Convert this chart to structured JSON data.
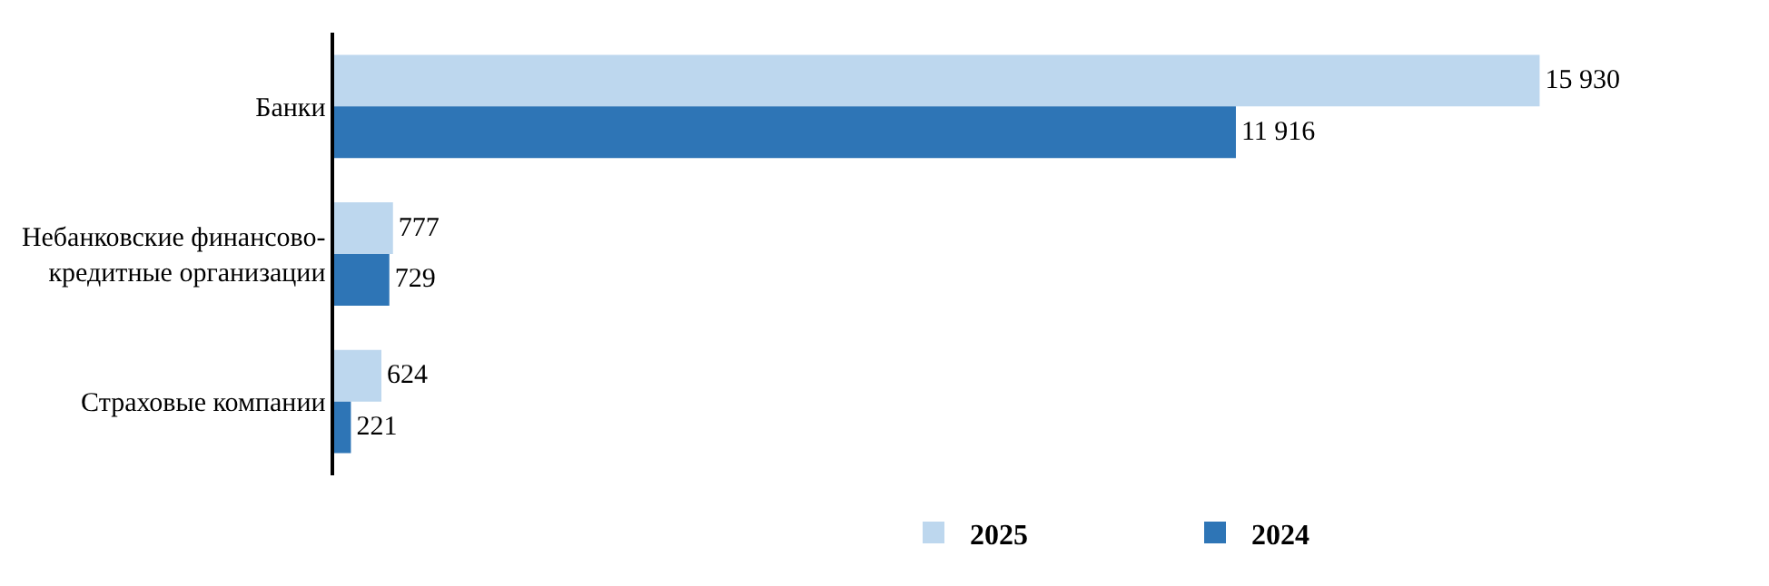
{
  "chart_data": {
    "type": "bar",
    "orientation": "horizontal",
    "categories": [
      "Банки",
      "Небанковские финансово-кредитные организации",
      "Страховые компании"
    ],
    "series": [
      {
        "name": "2025",
        "color": "#bdd7ee",
        "values": [
          15930,
          777,
          624
        ],
        "value_labels": [
          "15 930",
          "777",
          "624"
        ]
      },
      {
        "name": "2024",
        "color": "#2e75b6",
        "values": [
          11916,
          729,
          221
        ],
        "value_labels": [
          "11 916",
          "729",
          "221"
        ]
      }
    ],
    "tick_labels": "y",
    "legend": "bottom"
  }
}
